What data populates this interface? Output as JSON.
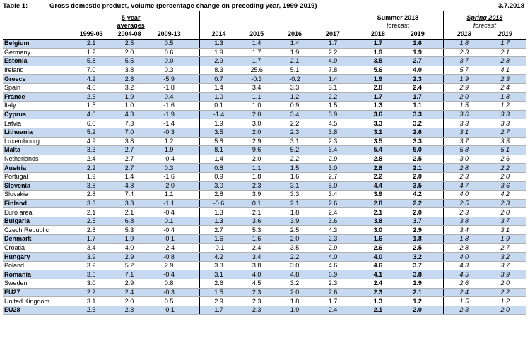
{
  "header": {
    "table_number": "Table 1:",
    "title": "Gross domestic product, volume (percentage change on preceding year, 1999-2019)",
    "date": "3.7.2018"
  },
  "groups": {
    "averages_line1": "5-year",
    "averages_line2": "averages",
    "summer_line1": "Summer 2018",
    "summer_line2": "forecast",
    "spring_line1": "Spring 2018",
    "spring_line2": "forecast"
  },
  "columns": [
    "1999-03",
    "2004-08",
    "2009-13",
    "2014",
    "2015",
    "2016",
    "2017",
    "2018",
    "2019",
    "2018",
    "2019"
  ],
  "rows": [
    {
      "name": "Belgium",
      "shaded": true,
      "v": [
        "2.1",
        "2.5",
        "0.5",
        "1.3",
        "1.4",
        "1.4",
        "1.7",
        "1.7",
        "1.6",
        "1.8",
        "1.7"
      ]
    },
    {
      "name": "Germany",
      "shaded": false,
      "v": [
        "1.2",
        "2.0",
        "0.6",
        "1.9",
        "1.7",
        "1.9",
        "2.2",
        "1.9",
        "1.9",
        "2.3",
        "2.1"
      ]
    },
    {
      "name": "Estonia",
      "shaded": true,
      "v": [
        "5.8",
        "5.5",
        "0.0",
        "2.9",
        "1.7",
        "2.1",
        "4.9",
        "3.5",
        "2.7",
        "3.7",
        "2.8"
      ]
    },
    {
      "name": "Ireland",
      "shaded": false,
      "v": [
        "7.0",
        "3.8",
        "0.3",
        "8.3",
        "25.6",
        "5.1",
        "7.8",
        "5.6",
        "4.0",
        "5.7",
        "4.1"
      ]
    },
    {
      "name": "Greece",
      "shaded": true,
      "v": [
        "4.2",
        "2.8",
        "-5.9",
        "0.7",
        "-0.3",
        "-0.2",
        "1.4",
        "1.9",
        "2.3",
        "1.9",
        "2.3"
      ]
    },
    {
      "name": "Spain",
      "shaded": false,
      "v": [
        "4.0",
        "3.2",
        "-1.8",
        "1.4",
        "3.4",
        "3.3",
        "3.1",
        "2.8",
        "2.4",
        "2.9",
        "2.4"
      ]
    },
    {
      "name": "France",
      "shaded": true,
      "v": [
        "2.3",
        "1.9",
        "0.4",
        "1.0",
        "1.1",
        "1.2",
        "2.2",
        "1.7",
        "1.7",
        "2.0",
        "1.8"
      ]
    },
    {
      "name": "Italy",
      "shaded": false,
      "v": [
        "1.5",
        "1.0",
        "-1.6",
        "0.1",
        "1.0",
        "0.9",
        "1.5",
        "1.3",
        "1.1",
        "1.5",
        "1.2"
      ]
    },
    {
      "name": "Cyprus",
      "shaded": true,
      "v": [
        "4.0",
        "4.3",
        "-1.9",
        "-1.4",
        "2.0",
        "3.4",
        "3.9",
        "3.6",
        "3.3",
        "3.6",
        "3.3"
      ]
    },
    {
      "name": "Latvia",
      "shaded": false,
      "v": [
        "6.0",
        "7.3",
        "-1.4",
        "1.9",
        "3.0",
        "2.2",
        "4.5",
        "3.3",
        "3.2",
        "3.3",
        "3.3"
      ]
    },
    {
      "name": "Lithuania",
      "shaded": true,
      "v": [
        "5.2",
        "7.0",
        "-0.3",
        "3.5",
        "2.0",
        "2.3",
        "3.8",
        "3.1",
        "2.6",
        "3.1",
        "2.7"
      ]
    },
    {
      "name": "Luxembourg",
      "shaded": false,
      "v": [
        "4.9",
        "3.8",
        "1.2",
        "5.8",
        "2.9",
        "3.1",
        "2.3",
        "3.5",
        "3.3",
        "3.7",
        "3.5"
      ]
    },
    {
      "name": "Malta",
      "shaded": true,
      "v": [
        "3.3",
        "2.7",
        "1.9",
        "8.1",
        "9.6",
        "5.2",
        "6.4",
        "5.4",
        "5.0",
        "5.8",
        "5.1"
      ]
    },
    {
      "name": "Netherlands",
      "shaded": false,
      "v": [
        "2.4",
        "2.7",
        "-0.4",
        "1.4",
        "2.0",
        "2.2",
        "2.9",
        "2.8",
        "2.5",
        "3.0",
        "2.6"
      ]
    },
    {
      "name": "Austria",
      "shaded": true,
      "v": [
        "2.2",
        "2.7",
        "0.3",
        "0.8",
        "1.1",
        "1.5",
        "3.0",
        "2.8",
        "2.1",
        "2.8",
        "2.2"
      ]
    },
    {
      "name": "Portugal",
      "shaded": false,
      "v": [
        "1.9",
        "1.4",
        "-1.6",
        "0.9",
        "1.8",
        "1.6",
        "2.7",
        "2.2",
        "2.0",
        "2.3",
        "2.0"
      ]
    },
    {
      "name": "Slovenia",
      "shaded": true,
      "v": [
        "3.8",
        "4.8",
        "-2.0",
        "3.0",
        "2.3",
        "3.1",
        "5.0",
        "4.4",
        "3.5",
        "4.7",
        "3.6"
      ]
    },
    {
      "name": "Slovakia",
      "shaded": false,
      "v": [
        "2.8",
        "7.4",
        "1.1",
        "2.8",
        "3.9",
        "3.3",
        "3.4",
        "3.9",
        "4.2",
        "4.0",
        "4.2"
      ]
    },
    {
      "name": "Finland",
      "shaded": true,
      "v": [
        "3.3",
        "3.3",
        "-1.1",
        "-0.6",
        "0.1",
        "2.1",
        "2.6",
        "2.8",
        "2.2",
        "2.5",
        "2.3"
      ]
    },
    {
      "name": "Euro area",
      "shaded": false,
      "v": [
        "2.1",
        "2.1",
        "-0.4",
        "1.3",
        "2.1",
        "1.8",
        "2.4",
        "2.1",
        "2.0",
        "2.3",
        "2.0"
      ]
    },
    {
      "name": "Bulgaria",
      "shaded": true,
      "v": [
        "2.5",
        "6.8",
        "0.1",
        "1.3",
        "3.6",
        "3.9",
        "3.6",
        "3.8",
        "3.7",
        "3.8",
        "3.7"
      ]
    },
    {
      "name": "Czech Republic",
      "shaded": false,
      "v": [
        "2.8",
        "5.3",
        "-0.4",
        "2.7",
        "5.3",
        "2.5",
        "4.3",
        "3.0",
        "2.9",
        "3.4",
        "3.1"
      ]
    },
    {
      "name": "Denmark",
      "shaded": true,
      "v": [
        "1.7",
        "1.9",
        "-0.1",
        "1.6",
        "1.6",
        "2.0",
        "2.3",
        "1.6",
        "1.8",
        "1.8",
        "1.9"
      ]
    },
    {
      "name": "Croatia",
      "shaded": false,
      "v": [
        "3.4",
        "4.0",
        "-2.4",
        "-0.1",
        "2.4",
        "3.5",
        "2.9",
        "2.6",
        "2.5",
        "2.8",
        "2.7"
      ]
    },
    {
      "name": "Hungary",
      "shaded": true,
      "v": [
        "3.9",
        "2.9",
        "-0.8",
        "4.2",
        "3.4",
        "2.2",
        "4.0",
        "4.0",
        "3.2",
        "4.0",
        "3.2"
      ]
    },
    {
      "name": "Poland",
      "shaded": false,
      "v": [
        "3.2",
        "5.2",
        "2.9",
        "3.3",
        "3.8",
        "3.0",
        "4.6",
        "4.6",
        "3.7",
        "4.3",
        "3.7"
      ]
    },
    {
      "name": "Romania",
      "shaded": true,
      "v": [
        "3.6",
        "7.1",
        "-0.4",
        "3.1",
        "4.0",
        "4.8",
        "6.9",
        "4.1",
        "3.8",
        "4.5",
        "3.9"
      ]
    },
    {
      "name": "Sweden",
      "shaded": false,
      "v": [
        "3.0",
        "2.9",
        "0.8",
        "2.6",
        "4.5",
        "3.2",
        "2.3",
        "2.4",
        "1.9",
        "2.6",
        "2.0"
      ]
    },
    {
      "name": "EU27",
      "shaded": true,
      "v": [
        "2.2",
        "2.4",
        "-0.3",
        "1.5",
        "2.3",
        "2.0",
        "2.6",
        "2.3",
        "2.1",
        "2.4",
        "2.2"
      ]
    },
    {
      "name": "United Kingdom",
      "shaded": false,
      "v": [
        "3.1",
        "2.0",
        "0.5",
        "2.9",
        "2.3",
        "1.8",
        "1.7",
        "1.3",
        "1.2",
        "1.5",
        "1.2"
      ]
    },
    {
      "name": "EU28",
      "shaded": true,
      "v": [
        "2.3",
        "2.3",
        "-0.1",
        "1.7",
        "2.3",
        "1.9",
        "2.4",
        "2.1",
        "2.0",
        "2.3",
        "2.0"
      ]
    }
  ]
}
